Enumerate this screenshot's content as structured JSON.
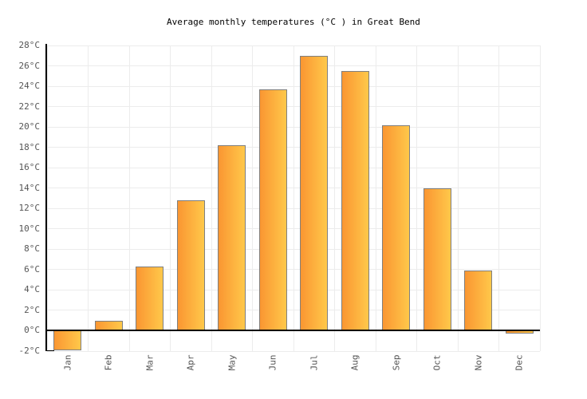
{
  "chart": {
    "title": "Average monthly temperatures (°C ) in Great Bend"
  },
  "chart_data": {
    "type": "bar",
    "title": "Average monthly temperatures (°C ) in Great Bend",
    "categories": [
      "Jan",
      "Feb",
      "Mar",
      "Apr",
      "May",
      "Jun",
      "Jul",
      "Aug",
      "Sep",
      "Oct",
      "Nov",
      "Dec"
    ],
    "values": [
      -1.9,
      1.0,
      6.3,
      12.8,
      18.2,
      23.7,
      27.0,
      25.5,
      20.2,
      14.0,
      5.9,
      -0.3
    ],
    "xlabel": "",
    "ylabel": "",
    "ylim": [
      -2,
      28
    ],
    "ytick_step": 2,
    "ytick_suffix": "°C",
    "grid": true,
    "legend": "none",
    "bar_orientation": "vertical",
    "x_label_rotation": -90,
    "colors": {
      "bar_gradient_left": "#FA9632",
      "bar_gradient_right": "#FFC84A",
      "bar_border": "#7F7F7F",
      "gridline": "#ECECEC",
      "axis": "#000000",
      "zero_line": "#000000",
      "tick_label": "#555555",
      "title": "#000000",
      "background": "#FFFFFF"
    }
  }
}
